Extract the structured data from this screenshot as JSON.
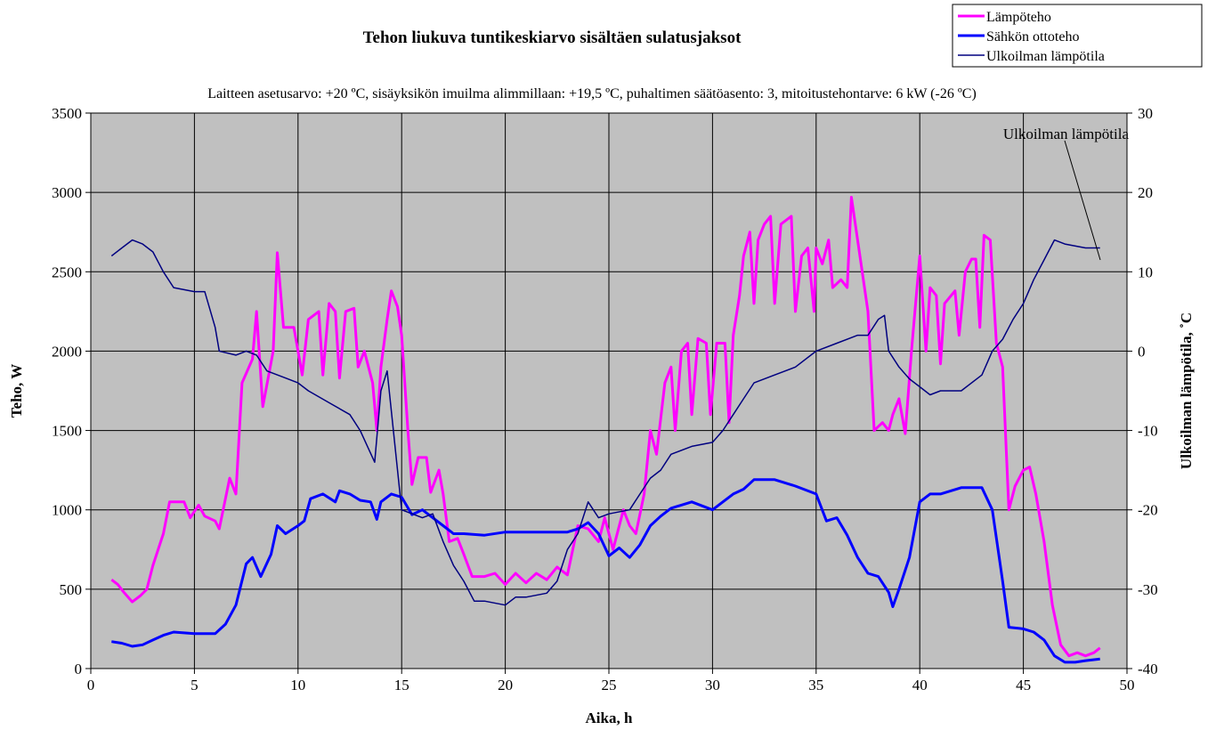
{
  "chart_data": {
    "type": "line",
    "title": "Tehon liukuva tuntikeskiarvo sisältäen sulatusjaksot",
    "subtitle": "Laitteen asetusarvo: +20 ºC, sisäyksikön imuilma alimmillaan: +19,5 ºC, puhaltimen säätöasento: 3, mitoitustehontarve: 6 kW (-26 ºC)",
    "xlabel": "Aika, h",
    "ylabel": "Teho, W",
    "y2label": "Ulkoilman lämpötila, ˚C",
    "annotation": "Ulkoilman lämpötila",
    "xlim": [
      0,
      50
    ],
    "xticks": [
      0,
      5,
      10,
      15,
      20,
      25,
      30,
      35,
      40,
      45,
      50
    ],
    "ylim": [
      0,
      3500
    ],
    "yticks": [
      0,
      500,
      1000,
      1500,
      2000,
      2500,
      3000,
      3500
    ],
    "y2lim": [
      -40,
      30
    ],
    "y2ticks": [
      -40,
      -30,
      -20,
      -10,
      0,
      10,
      20,
      30
    ],
    "grid": true,
    "legend": "top-right",
    "background": "#c0c0c0",
    "series": [
      {
        "name": "Lämpöteho",
        "color": "#ff00ff",
        "width": 3,
        "x": [
          1.0,
          1.3,
          1.6,
          2.0,
          2.4,
          2.7,
          3.0,
          3.5,
          3.8,
          4.5,
          4.8,
          5.2,
          5.5,
          6.0,
          6.2,
          6.7,
          7.0,
          7.3,
          7.8,
          8.0,
          8.3,
          8.8,
          9.0,
          9.3,
          9.8,
          10.2,
          10.5,
          11.0,
          11.2,
          11.5,
          11.8,
          12.0,
          12.3,
          12.7,
          12.9,
          13.2,
          13.6,
          13.8,
          14.0,
          14.3,
          14.5,
          14.8,
          15.0,
          15.3,
          15.5,
          15.8,
          16.2,
          16.4,
          16.8,
          17.0,
          17.3,
          17.7,
          18.0,
          18.4,
          19.0,
          19.5,
          20.0,
          20.5,
          21.0,
          21.5,
          22.0,
          22.5,
          23.0,
          23.5,
          24.0,
          24.5,
          24.8,
          25.2,
          25.7,
          26.0,
          26.3,
          26.7,
          27.0,
          27.3,
          27.7,
          28.0,
          28.2,
          28.5,
          28.8,
          29.0,
          29.3,
          29.7,
          29.9,
          30.2,
          30.6,
          30.8,
          31.0,
          31.3,
          31.5,
          31.8,
          32.0,
          32.2,
          32.5,
          32.8,
          33.0,
          33.3,
          33.8,
          34.0,
          34.3,
          34.6,
          34.9,
          35.0,
          35.3,
          35.6,
          35.8,
          36.2,
          36.5,
          36.7,
          37.0,
          37.5,
          37.8,
          38.2,
          38.5,
          38.7,
          39.0,
          39.3,
          39.6,
          40.0,
          40.3,
          40.5,
          40.8,
          41.0,
          41.2,
          41.7,
          41.9,
          42.2,
          42.5,
          42.7,
          42.9,
          43.1,
          43.4,
          43.7,
          44.0,
          44.3,
          44.6,
          45.0,
          45.3,
          45.6,
          46.0,
          46.4,
          46.8,
          47.2,
          47.6,
          48.0,
          48.4,
          48.7
        ],
        "values": [
          560,
          530,
          480,
          420,
          460,
          500,
          650,
          850,
          1050,
          1050,
          950,
          1030,
          960,
          930,
          880,
          1200,
          1100,
          1800,
          1950,
          2250,
          1650,
          2000,
          2620,
          2150,
          2150,
          1850,
          2200,
          2250,
          1850,
          2300,
          2250,
          1830,
          2250,
          2270,
          1900,
          2000,
          1800,
          1500,
          1900,
          2200,
          2380,
          2280,
          2100,
          1500,
          1160,
          1330,
          1330,
          1110,
          1250,
          1100,
          800,
          820,
          720,
          580,
          580,
          600,
          530,
          600,
          540,
          600,
          560,
          640,
          590,
          900,
          880,
          800,
          950,
          750,
          1000,
          900,
          850,
          1100,
          1500,
          1350,
          1800,
          1900,
          1500,
          2000,
          2050,
          1600,
          2080,
          2050,
          1600,
          2050,
          2050,
          1550,
          2100,
          2350,
          2600,
          2750,
          2300,
          2700,
          2800,
          2850,
          2300,
          2800,
          2850,
          2250,
          2600,
          2650,
          2250,
          2650,
          2550,
          2700,
          2400,
          2450,
          2400,
          2970,
          2700,
          2250,
          1500,
          1550,
          1500,
          1600,
          1700,
          1480,
          2000,
          2600,
          2000,
          2400,
          2350,
          1920,
          2300,
          2380,
          2100,
          2500,
          2580,
          2580,
          2150,
          2730,
          2700,
          2050,
          1900,
          1000,
          1150,
          1250,
          1270,
          1100,
          800,
          400,
          150,
          80,
          100,
          80,
          100,
          130
        ]
      },
      {
        "name": "Sähkön ottoteho",
        "color": "#0000ff",
        "width": 3,
        "x": [
          1.0,
          1.5,
          2.0,
          2.5,
          3.0,
          3.5,
          4.0,
          5.0,
          6.0,
          6.5,
          7.0,
          7.5,
          7.8,
          8.2,
          8.7,
          9.0,
          9.4,
          10.0,
          10.3,
          10.6,
          11.2,
          11.8,
          12.0,
          12.5,
          13.0,
          13.5,
          13.8,
          14.0,
          14.5,
          15.0,
          15.5,
          16.0,
          16.5,
          17.0,
          17.5,
          18.0,
          19.0,
          20.0,
          21.0,
          22.0,
          23.0,
          23.5,
          24.0,
          24.5,
          25.0,
          25.5,
          26.0,
          26.5,
          27.0,
          27.5,
          28.0,
          29.0,
          30.0,
          30.5,
          31.0,
          31.5,
          32.0,
          33.0,
          34.0,
          35.0,
          35.5,
          36.0,
          36.5,
          37.0,
          37.5,
          38.0,
          38.5,
          38.7,
          39.0,
          39.5,
          40.0,
          40.5,
          41.0,
          42.0,
          43.0,
          43.5,
          44.0,
          44.3,
          45.0,
          45.5,
          46.0,
          46.5,
          47.0,
          47.5,
          48.0,
          48.7
        ],
        "values": [
          170,
          160,
          140,
          150,
          180,
          210,
          230,
          220,
          220,
          280,
          400,
          660,
          700,
          580,
          720,
          900,
          850,
          900,
          930,
          1070,
          1100,
          1050,
          1120,
          1100,
          1060,
          1050,
          940,
          1050,
          1100,
          1080,
          970,
          1000,
          950,
          900,
          850,
          850,
          840,
          860,
          860,
          860,
          860,
          880,
          920,
          850,
          710,
          760,
          700,
          780,
          900,
          960,
          1010,
          1050,
          1000,
          1050,
          1100,
          1130,
          1190,
          1190,
          1150,
          1100,
          930,
          950,
          840,
          700,
          600,
          580,
          480,
          390,
          500,
          700,
          1050,
          1100,
          1100,
          1140,
          1140,
          1000,
          550,
          260,
          250,
          230,
          180,
          80,
          40,
          40,
          50,
          60
        ]
      },
      {
        "name": "Ulkoilman lämpötila",
        "color": "#000080",
        "width": 1.5,
        "axis": "y2",
        "x": [
          1.0,
          1.5,
          2.0,
          2.5,
          3.0,
          3.5,
          4.0,
          5.0,
          5.5,
          6.0,
          6.2,
          7.0,
          7.5,
          8.0,
          8.5,
          9.5,
          10.0,
          10.5,
          11.5,
          12.5,
          13.0,
          13.7,
          14.0,
          14.3,
          14.6,
          15.0,
          16.0,
          16.5,
          17.0,
          17.5,
          18.0,
          18.5,
          19.0,
          20.0,
          20.5,
          21.0,
          22.0,
          22.5,
          23.0,
          23.5,
          24.0,
          24.5,
          25.0,
          26.0,
          26.5,
          27.0,
          27.5,
          28.0,
          29.0,
          30.0,
          30.5,
          31.0,
          31.5,
          32.0,
          33.0,
          34.0,
          35.0,
          36.0,
          37.0,
          37.5,
          38.0,
          38.3,
          38.5,
          39.0,
          39.5,
          40.0,
          40.5,
          41.0,
          42.0,
          43.0,
          43.5,
          44.0,
          44.5,
          45.0,
          45.5,
          46.0,
          46.5,
          47.0,
          48.0,
          48.7
        ],
        "values": [
          12,
          13,
          14,
          13.5,
          12.5,
          10,
          8,
          7.5,
          7.5,
          3,
          0,
          -0.5,
          0,
          -0.5,
          -2.5,
          -3.5,
          -4,
          -5,
          -6.5,
          -8,
          -10,
          -14,
          -5,
          -2.5,
          -10,
          -20,
          -21,
          -20.5,
          -24,
          -27,
          -29,
          -31.5,
          -31.5,
          -32,
          -31,
          -31,
          -30.5,
          -29,
          -25,
          -23,
          -19,
          -21,
          -20.5,
          -20,
          -18,
          -16,
          -15,
          -13,
          -12,
          -11.5,
          -10,
          -8,
          -6,
          -4,
          -3,
          -2,
          0,
          1,
          2,
          2,
          4,
          4.5,
          0,
          -2,
          -3.5,
          -4.5,
          -5.5,
          -5,
          -5,
          -3,
          0,
          1.5,
          4,
          6,
          9,
          11.5,
          14,
          13.5,
          13,
          13
        ]
      }
    ]
  }
}
